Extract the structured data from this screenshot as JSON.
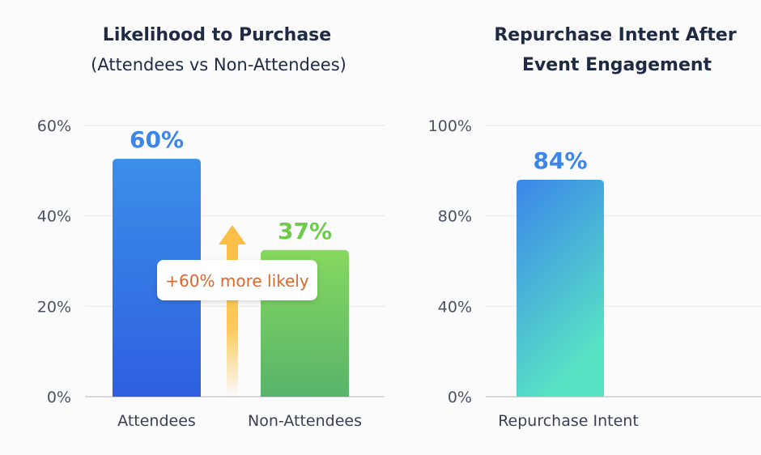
{
  "chart_data": [
    {
      "type": "bar",
      "title": "Likelihood to Purchase",
      "subtitle": "(Attendees vs Non-Attendees)",
      "categories": [
        "Attendees",
        "Non-Attendees"
      ],
      "values": [
        60,
        37
      ],
      "value_labels": [
        "60%",
        "37%"
      ],
      "yticks": [
        "0%",
        "20%",
        "40%",
        "60%"
      ],
      "ylim": [
        0,
        60
      ],
      "grid": true,
      "colors": [
        "#3a7be8",
        "#6fcf5a"
      ],
      "label_colors": [
        "#3b86e8",
        "#6ccc4a"
      ],
      "annotation": {
        "text": "+60% more likely",
        "color": "#e0662a",
        "arrow_color": "#fbbf45",
        "icon": "arrow-up-icon"
      }
    },
    {
      "type": "bar",
      "title": "Repurchase Intent After",
      "subtitle": "Event Engagement",
      "categories": [
        "Repurchase Intent"
      ],
      "values": [
        84
      ],
      "value_labels": [
        "84%"
      ],
      "yticks": [
        "0%",
        "40%",
        "80%",
        "100%"
      ],
      "ylim": [
        0,
        100
      ],
      "grid": true,
      "colors": [
        "#3b86e8"
      ],
      "label_colors": [
        "#3b86e8"
      ]
    }
  ]
}
